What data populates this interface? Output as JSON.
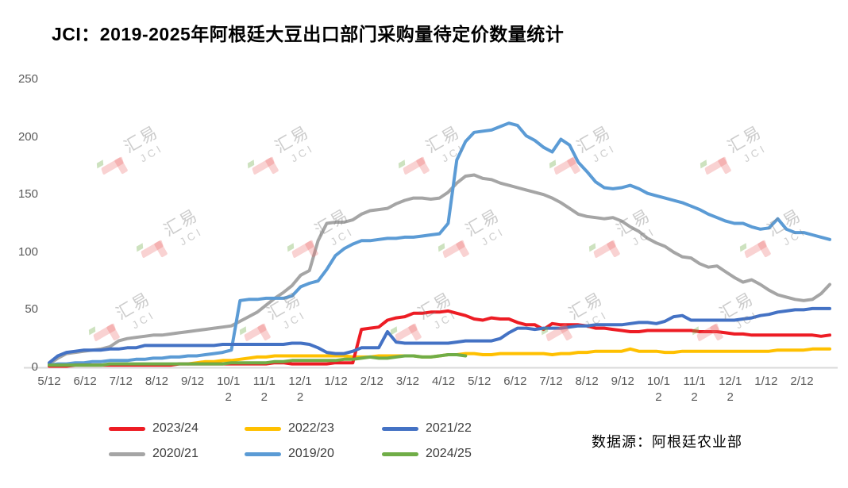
{
  "title": "JCI：2019-2025年阿根廷大豆出口部门采购量待定价数量统计",
  "source_note": "数据源：阿根廷农业部",
  "watermark": {
    "cn": "汇易",
    "en": "JCI"
  },
  "chart_data": {
    "type": "line",
    "title": "JCI：2019-2025年阿根廷大豆出口部门采购量待定价数量统计",
    "xlabel": "",
    "ylabel": "",
    "ylim": [
      0,
      250
    ],
    "y_ticks": [
      0,
      50,
      100,
      150,
      200,
      250
    ],
    "x_tick_labels": [
      "5/12",
      "6/12",
      "7/12",
      "8/12",
      "9/12",
      "10/12",
      "11/12",
      "12/12",
      "1/12",
      "2/12",
      "3/12",
      "4/12",
      "5/12",
      "6/12",
      "7/12",
      "8/12",
      "9/12",
      "10/12",
      "11/12",
      "12/12",
      "1/12",
      "2/12"
    ],
    "x_unit": "week",
    "grid": false,
    "legend_position": "bottom",
    "axis_color": "#d9d9d9",
    "tick_label_color": "#595959",
    "series": [
      {
        "name": "2023/24",
        "color": "#ed1c24",
        "start_week": 0,
        "values": [
          1,
          1,
          1,
          2,
          2,
          2,
          2,
          2,
          2,
          2,
          2,
          2,
          2,
          2,
          2,
          3,
          3,
          3,
          3,
          3,
          3,
          3,
          3,
          3,
          3,
          3,
          4,
          4,
          3,
          3,
          3,
          3,
          3,
          4,
          4,
          4,
          33,
          34,
          35,
          41,
          43,
          44,
          47,
          47,
          48,
          48,
          49,
          47,
          45,
          42,
          41,
          43,
          42,
          42,
          39,
          37,
          37,
          33,
          38,
          37,
          37,
          37,
          36,
          34,
          34,
          33,
          32,
          31,
          31,
          32,
          32,
          32,
          32,
          32,
          32,
          31,
          31,
          31,
          30,
          29,
          29,
          28,
          28,
          28,
          28,
          28,
          28,
          28,
          28,
          27,
          28
        ]
      },
      {
        "name": "2022/23",
        "color": "#ffc000",
        "start_week": 16,
        "values": [
          3,
          4,
          5,
          5,
          6,
          6,
          7,
          8,
          9,
          9,
          10,
          10,
          10,
          10,
          10,
          10,
          10,
          10,
          10,
          9,
          9,
          9,
          10,
          10,
          10,
          10,
          10,
          9,
          9,
          10,
          11,
          11,
          12,
          12,
          11,
          11,
          12,
          12,
          12,
          12,
          12,
          12,
          11,
          12,
          12,
          13,
          13,
          14,
          14,
          14,
          14,
          16,
          14,
          14,
          14,
          13,
          13,
          14,
          14,
          14,
          14,
          14,
          14,
          14,
          14,
          14,
          14,
          14,
          15,
          15,
          15,
          15,
          16,
          16,
          16
        ]
      },
      {
        "name": "2021/22",
        "color": "#4472c4",
        "start_week": 0,
        "values": [
          4,
          10,
          13,
          14,
          15,
          15,
          15,
          16,
          16,
          17,
          17,
          19,
          19,
          19,
          19,
          19,
          19,
          19,
          19,
          19,
          20,
          20,
          20,
          20,
          20,
          20,
          20,
          20,
          21,
          21,
          20,
          17,
          13,
          12,
          12,
          14,
          17,
          17,
          17,
          31,
          22,
          21,
          21,
          21,
          21,
          21,
          21,
          22,
          23,
          23,
          23,
          23,
          25,
          30,
          34,
          34,
          33,
          34,
          34,
          34,
          35,
          36,
          36,
          37,
          37,
          37,
          37,
          38,
          39,
          39,
          38,
          40,
          44,
          45,
          41,
          41,
          41,
          41,
          41,
          41,
          42,
          43,
          45,
          46,
          48,
          49,
          50,
          50,
          51,
          51,
          51
        ]
      },
      {
        "name": "2020/21",
        "color": "#a5a5a5",
        "start_week": 0,
        "values": [
          3,
          8,
          12,
          13,
          14,
          15,
          16,
          18,
          23,
          25,
          26,
          27,
          28,
          28,
          29,
          30,
          31,
          32,
          33,
          34,
          35,
          36,
          40,
          44,
          48,
          54,
          60,
          65,
          71,
          80,
          84,
          110,
          125,
          126,
          126,
          128,
          133,
          136,
          137,
          138,
          142,
          145,
          147,
          147,
          146,
          147,
          152,
          160,
          166,
          167,
          164,
          163,
          160,
          158,
          156,
          154,
          152,
          150,
          147,
          143,
          138,
          133,
          131,
          130,
          129,
          130,
          127,
          122,
          118,
          112,
          108,
          105,
          100,
          96,
          95,
          90,
          87,
          88,
          83,
          78,
          74,
          76,
          72,
          67,
          63,
          61,
          59,
          58,
          59,
          64,
          72
        ]
      },
      {
        "name": "2019/20",
        "color": "#5b9bd5",
        "start_week": 0,
        "values": [
          2,
          3,
          3,
          4,
          4,
          5,
          5,
          6,
          6,
          6,
          7,
          7,
          8,
          8,
          9,
          9,
          10,
          10,
          11,
          12,
          13,
          15,
          58,
          59,
          59,
          60,
          60,
          60,
          62,
          70,
          73,
          75,
          85,
          97,
          103,
          107,
          110,
          110,
          111,
          112,
          112,
          113,
          113,
          114,
          115,
          116,
          125,
          180,
          196,
          204,
          205,
          206,
          209,
          212,
          210,
          201,
          197,
          191,
          187,
          198,
          193,
          178,
          170,
          161,
          156,
          155,
          156,
          158,
          155,
          151,
          149,
          147,
          145,
          143,
          140,
          137,
          133,
          130,
          127,
          125,
          125,
          122,
          120,
          121,
          129,
          120,
          117,
          117,
          115,
          113,
          111
        ]
      },
      {
        "name": "2024/25",
        "color": "#70ad47",
        "start_week": 0,
        "values": [
          2,
          2,
          2,
          2,
          2,
          2,
          2,
          3,
          3,
          3,
          3,
          3,
          3,
          3,
          3,
          3,
          3,
          3,
          3,
          3,
          3,
          4,
          4,
          4,
          4,
          4,
          5,
          5,
          6,
          6,
          6,
          6,
          6,
          6,
          7,
          7,
          8,
          9,
          8,
          8,
          9,
          10,
          10,
          9,
          9,
          10,
          11,
          11,
          10
        ]
      }
    ]
  }
}
